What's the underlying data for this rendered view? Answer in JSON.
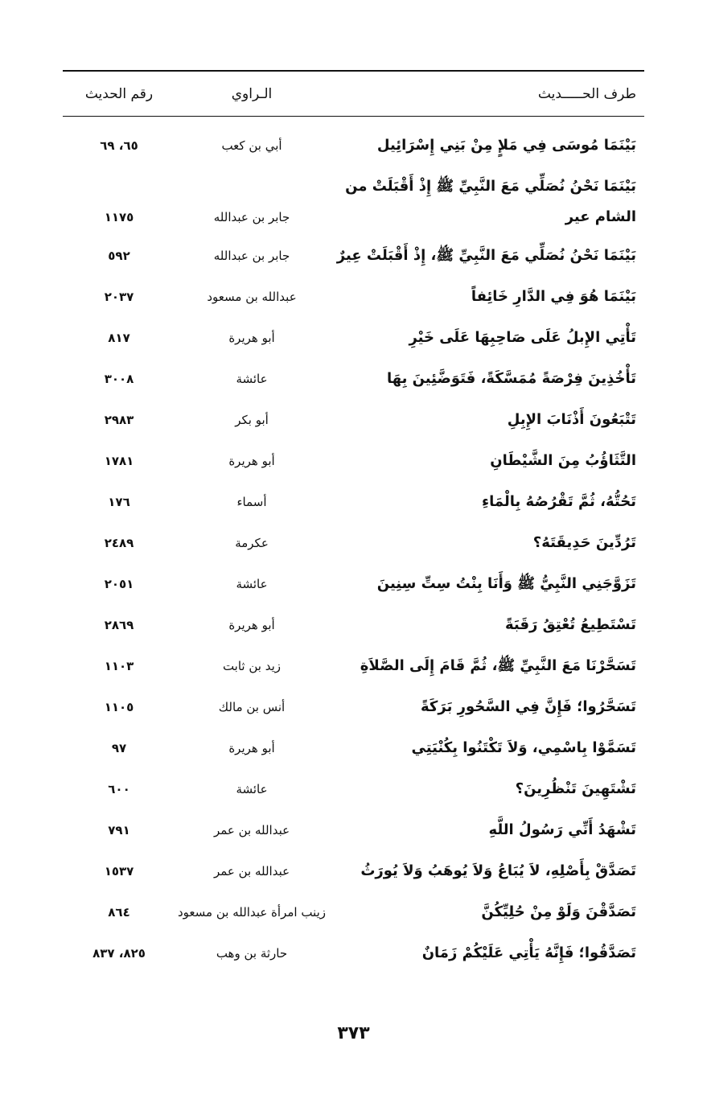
{
  "header": {
    "hadith_label": "طرف الحـــــديث",
    "narrator_label": "الـراوي",
    "number_label": "رقم الحديث"
  },
  "rows": [
    {
      "hadith": "بَيْنَمَا مُوسَى فِي مَلإٍ مِنْ بَنِي إِسْرَائِيل",
      "narrator": "أبي بن كعب",
      "number": "٦٥، ٦٩"
    },
    {
      "hadith": "بَيْنَمَا نَحْنُ نُصَلِّي مَعَ النَّبِيِّ ﷺ إِذْ أَقْبَلَتْ من الشام عير",
      "narrator": "جابر بن عبدالله",
      "number": "١١٧٥"
    },
    {
      "hadith": "بَيْنَمَا نَحْنُ نُصَلِّي مَعَ النَّبِيِّ ﷺ، إِذْ أَقْبَلَتْ عِيرٌ",
      "narrator": "جابر بن عبدالله",
      "number": "٥٩٢"
    },
    {
      "hadith": "بَيْنَمَا هُوَ فِي الدَّارِ خَائِفاً",
      "narrator": "عبدالله بن مسعود",
      "number": "٢٠٣٧"
    },
    {
      "hadith": "تَأْتِي الإِبلُ عَلَى صَاحِبِهَا عَلَى خَيْرِ",
      "narrator": "أبو هريرة",
      "number": "٨١٧"
    },
    {
      "hadith": "تَأْخُذِينَ فِرْصَةً مُمَسَّكَةً، فَتَوَضَّئِينَ بِهَا",
      "narrator": "عائشة",
      "number": "٣٠٠٨"
    },
    {
      "hadith": "تَتْبَعُونَ أَذْنَابَ الإِبِلِ",
      "narrator": "أبو بكر",
      "number": "٢٩٨٣"
    },
    {
      "hadith": "التَّثَاؤُبُ مِنَ الشَّيْطَانِ",
      "narrator": "أبو هريرة",
      "number": "١٧٨١"
    },
    {
      "hadith": "تَحُتُّهُ، ثُمَّ تَقْرُصُهُ بِالْمَاءِ",
      "narrator": "أسماء",
      "number": "١٧٦"
    },
    {
      "hadith": "تَرُدِّينَ حَدِيقَتَهُ؟",
      "narrator": "عكرمة",
      "number": "٢٤٨٩"
    },
    {
      "hadith": "تَزَوَّجَنِي النَّبِيُّ ﷺ وَأَنَا بِنْتُ سِتِّ سِنِينَ",
      "narrator": "عائشة",
      "number": "٢٠٥١"
    },
    {
      "hadith": "تَسْتَطِيعُ تُعْتِقُ رَقَبَةً",
      "narrator": "أبو هريرة",
      "number": "٢٨٦٩"
    },
    {
      "hadith": "تَسَحَّرْنَا مَعَ النَّبِيِّ ﷺ، ثُمَّ قَامَ إِلَى الصَّلاَةِ",
      "narrator": "زيد بن ثابت",
      "number": "١١٠٣"
    },
    {
      "hadith": "تَسَحَّرُوا؛ فَإِنَّ فِي السَّحُورِ بَرَكَةً",
      "narrator": "أنس بن مالك",
      "number": "١١٠٥"
    },
    {
      "hadith": "تَسَمَّوْا بِاسْمِي، وَلاَ تَكْتَنُوا بِكُنْيَتِي",
      "narrator": "أبو هريرة",
      "number": "٩٧"
    },
    {
      "hadith": "تَشْتَهِينَ تَنْظُرِينَ؟",
      "narrator": "عائشة",
      "number": "٦٠٠"
    },
    {
      "hadith": "تَشْهَدُ أَنِّي رَسُولُ اللَّهِ",
      "narrator": "عبدالله بن عمر",
      "number": "٧٩١"
    },
    {
      "hadith": "تَصَدَّقْ بِأَصْلِهِ، لاَ يُبَاعُ وَلاَ يُوهَبُ وَلاَ يُورَثُ",
      "narrator": "عبدالله بن عمر",
      "number": "١٥٣٧"
    },
    {
      "hadith": "تَصَدَّقْنَ وَلَوْ مِنْ حُلِيِّكُنَّ",
      "narrator": "زينب امرأة عبدالله بن مسعود",
      "number": "٨٦٤"
    },
    {
      "hadith": "تَصَدَّقُوا؛ فَإِنَّهُ يَأْتِي عَلَيْكُمْ زَمَانٌ",
      "narrator": "حارثة بن وهب",
      "number": "٨٢٥، ٨٣٧"
    }
  ],
  "page_number": "٣٧٣"
}
